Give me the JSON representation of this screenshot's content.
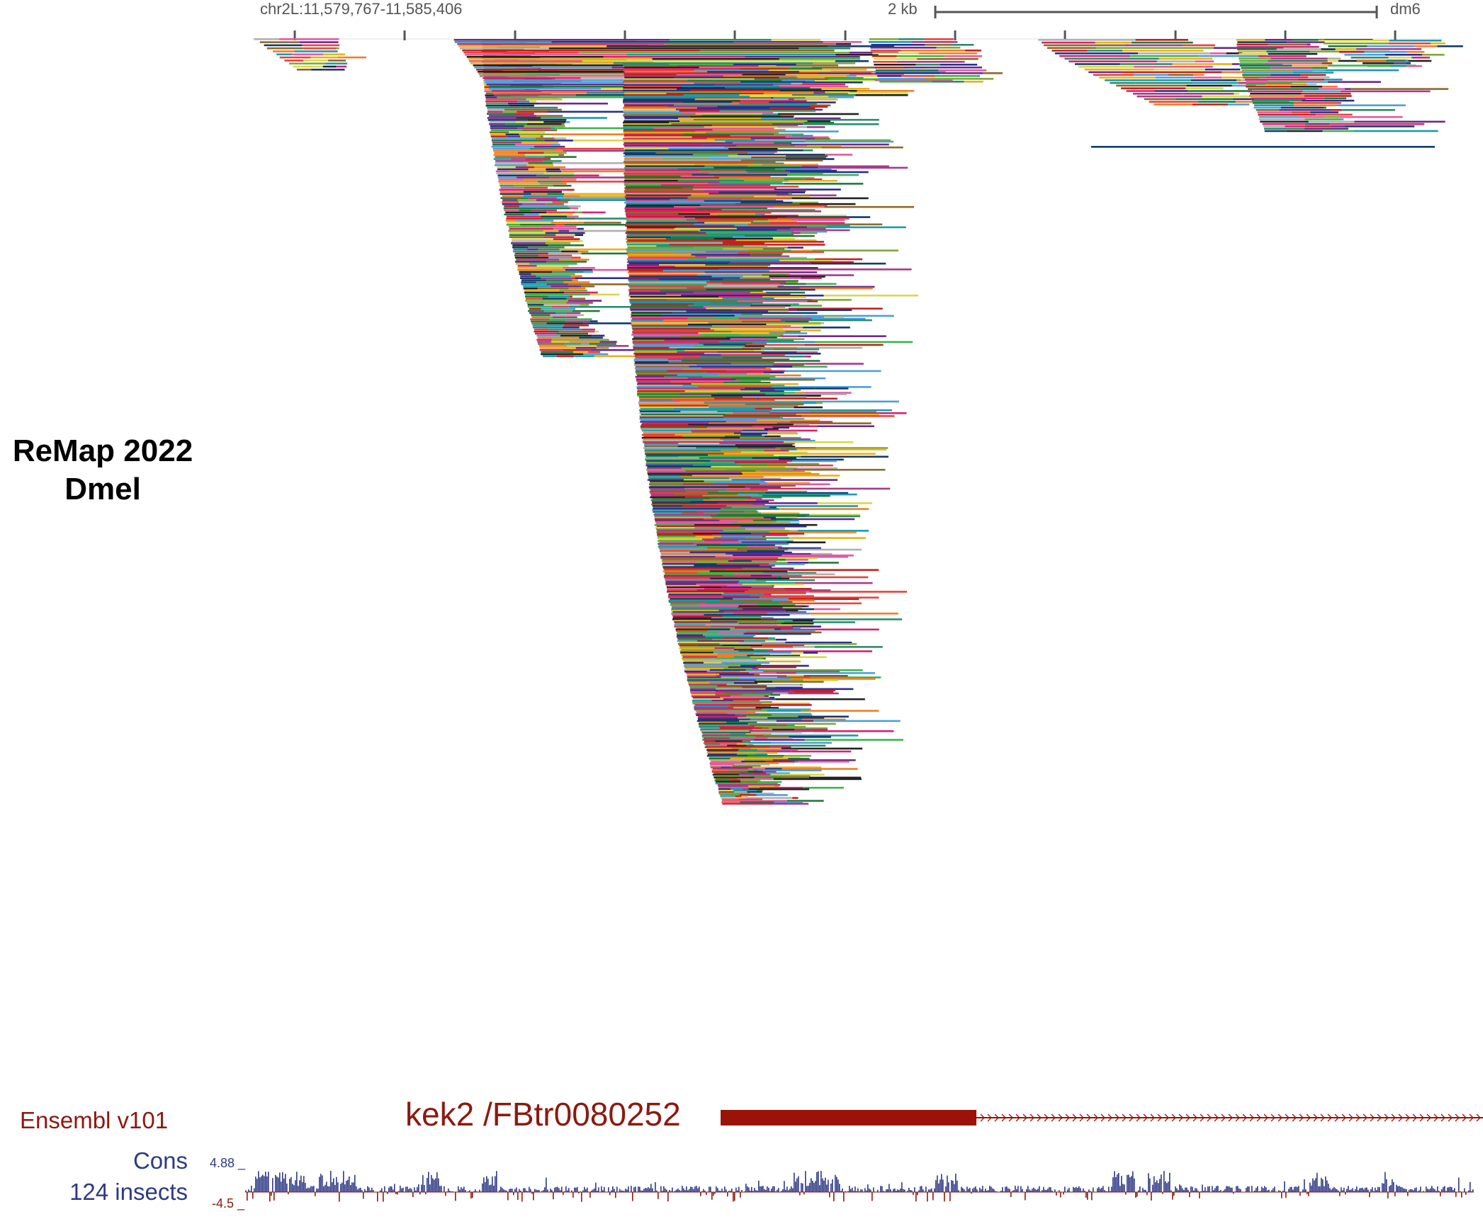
{
  "header": {
    "position": "chr2L:11,579,767-11,585,406",
    "scale_label": "2 kb",
    "assembly": "dm6"
  },
  "remap_track": {
    "title_line1": "ReMap 2022",
    "title_line2": "Dmel",
    "palette": [
      "#1f7a3a",
      "#d6236f",
      "#2a2f8f",
      "#e8b21a",
      "#6a2a8a",
      "#1a9aaf",
      "#c42020",
      "#7fa83a",
      "#f07f22",
      "#123b6e",
      "#e25aa0",
      "#3cb54a",
      "#8c6a2a",
      "#4aa0d8",
      "#b0b0b0",
      "#a83a8a",
      "#222222",
      "#d8d84a",
      "#e8423a",
      "#2c8c6c"
    ]
  },
  "gene_track": {
    "label": "Ensembl v101",
    "gene_name": "kek2 /FBtr0080252",
    "color": "#9b1208"
  },
  "cons_track": {
    "label_line1": "Cons",
    "label_line2": "124 insects",
    "max_value": "4.88",
    "min_value": "-4.5",
    "positive_color": "#2e3a85",
    "negative_color": "#8b1a10"
  }
}
